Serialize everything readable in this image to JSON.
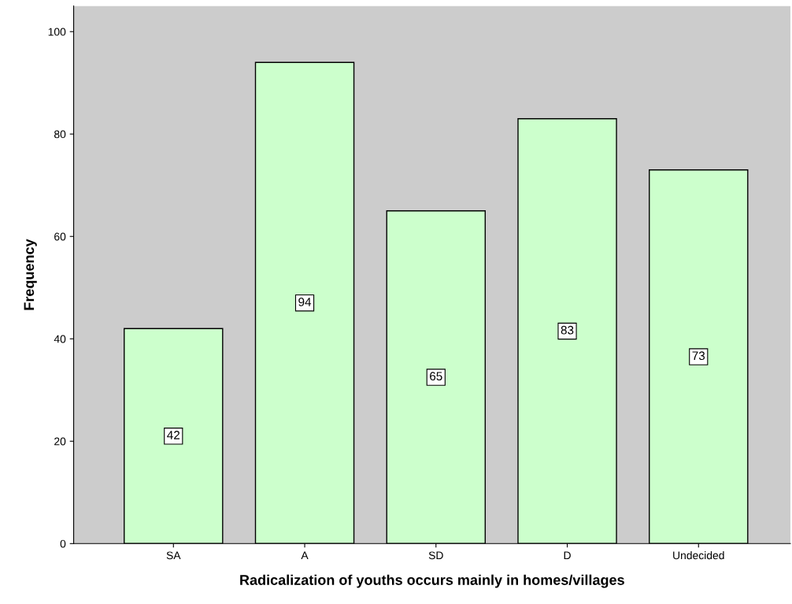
{
  "chart_data": {
    "type": "bar",
    "xlabel": "Radicalization of youths occurs mainly in homes/villages",
    "ylabel": "Frequency",
    "categories": [
      "SA",
      "A",
      "SD",
      "D",
      "Undecided"
    ],
    "values": [
      42,
      94,
      65,
      83,
      73
    ],
    "color": "#ccffcc",
    "ylim": [
      0,
      105
    ],
    "yticks": [
      0,
      20,
      40,
      60,
      80,
      100
    ],
    "data_labels": true,
    "grid": false,
    "legend": false
  }
}
